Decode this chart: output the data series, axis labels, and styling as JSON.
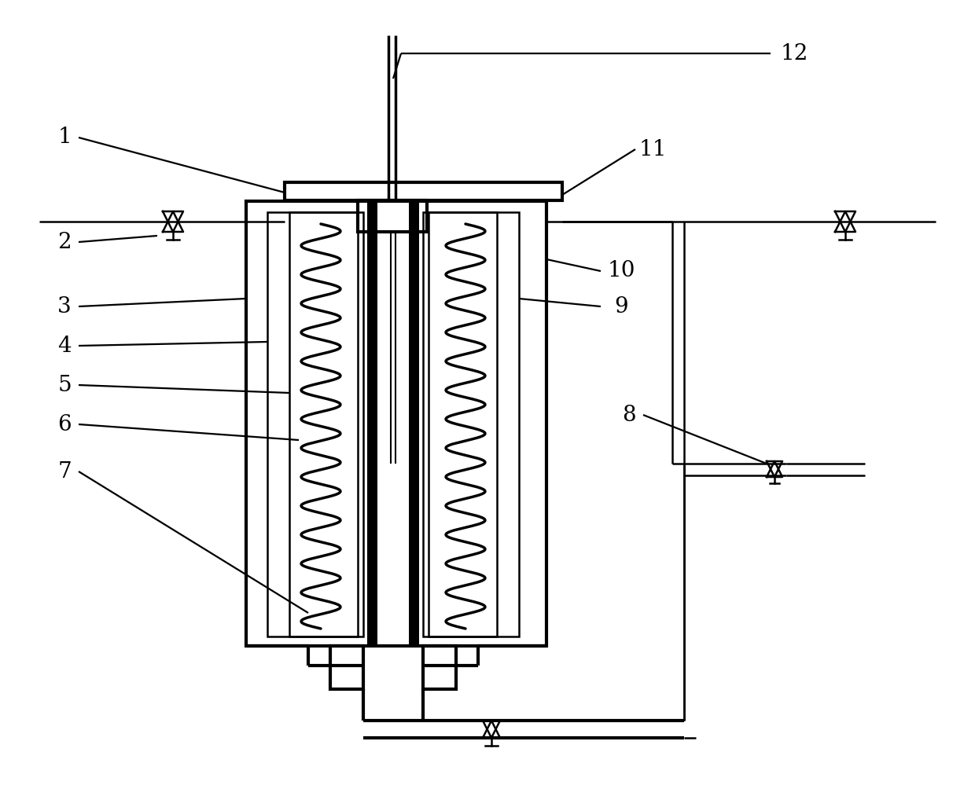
{
  "bg_color": "#ffffff",
  "line_color": "#000000",
  "lw": 1.8,
  "tlw": 3.0,
  "fig_width": 12.4,
  "fig_height": 9.99
}
